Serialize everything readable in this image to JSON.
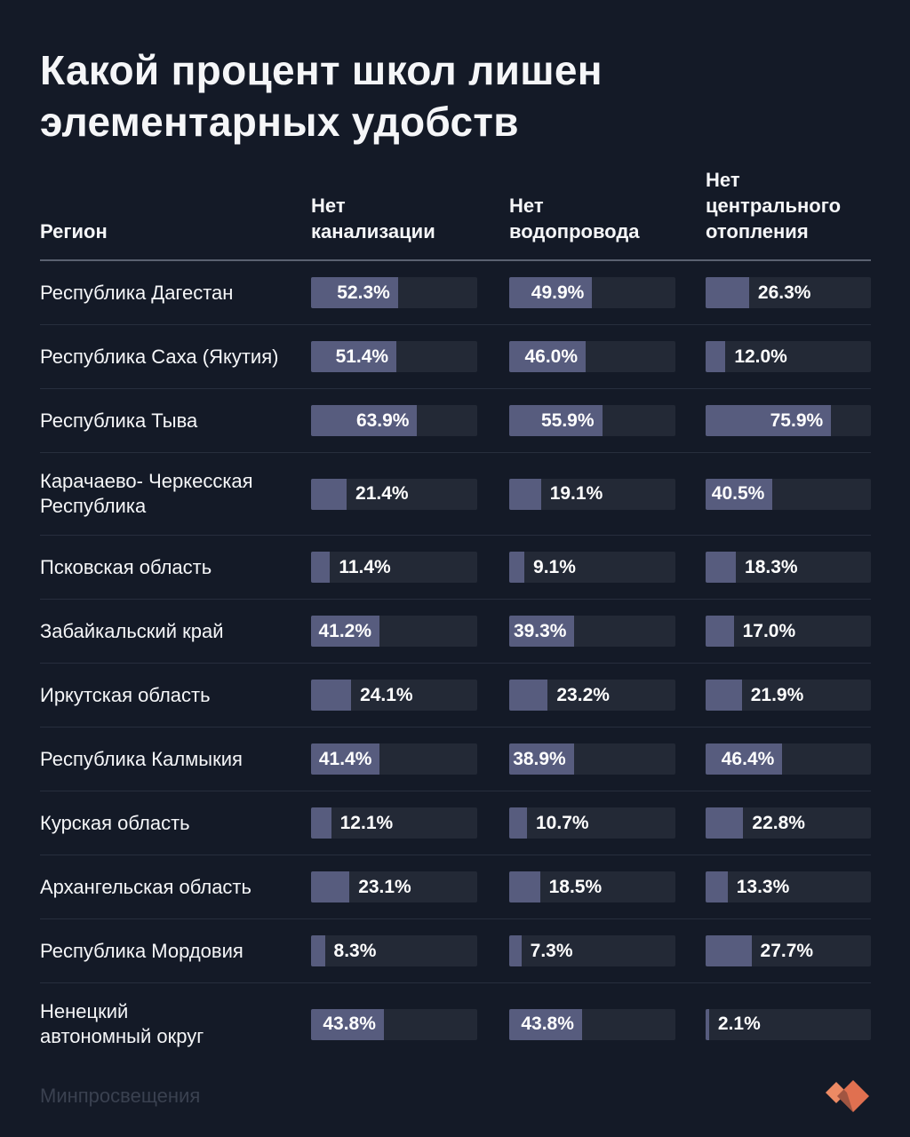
{
  "page": {
    "title": "Какой процент школ лишен элементарных удобств",
    "source": "Минпросвещения",
    "logo": "mel-heart-logo"
  },
  "table": {
    "region_header": "Регион",
    "column_headers": [
      "Нет\nканализации",
      "Нет\nводопровода",
      "Нет\nцентрального\nотопления"
    ]
  },
  "chart_data": {
    "type": "bar",
    "title": "Какой процент школ лишен элементарных удобств",
    "columns": [
      "Нет канализации",
      "Нет водопровода",
      "Нет центрального отопления"
    ],
    "unit": "%",
    "xlim": [
      0,
      100
    ],
    "value_label_format": "one_decimal_percent",
    "rows": [
      {
        "region": "Республика Дагестан",
        "values": [
          52.3,
          49.9,
          26.3
        ]
      },
      {
        "region": "Республика Саха (Якутия)",
        "values": [
          51.4,
          46.0,
          12.0
        ]
      },
      {
        "region": "Республика Тыва",
        "values": [
          63.9,
          55.9,
          75.9
        ]
      },
      {
        "region": "Карачаево- Черкесская\nРеспублика",
        "values": [
          21.4,
          19.1,
          40.5
        ]
      },
      {
        "region": "Псковская область",
        "values": [
          11.4,
          9.1,
          18.3
        ]
      },
      {
        "region": "Забайкальский край",
        "values": [
          41.2,
          39.3,
          17.0
        ]
      },
      {
        "region": "Иркутская область",
        "values": [
          24.1,
          23.2,
          21.9
        ]
      },
      {
        "region": "Республика Калмыкия",
        "values": [
          41.4,
          38.9,
          46.4
        ]
      },
      {
        "region": "Курская область",
        "values": [
          12.1,
          10.7,
          22.8
        ]
      },
      {
        "region": "Архангельская область",
        "values": [
          23.1,
          18.5,
          13.3
        ]
      },
      {
        "region": "Республика Мордовия",
        "values": [
          8.3,
          7.3,
          27.7
        ]
      },
      {
        "region": "Ненецкий\nавтономный округ",
        "values": [
          43.8,
          43.8,
          2.1
        ]
      }
    ]
  },
  "colors": {
    "background": "#141A27",
    "bar_track": "#232936",
    "bar_fill": "#575C7E",
    "text": "#F5F6F8",
    "header_rule": "#5A6170",
    "row_rule": "#272E3D",
    "source_text": "#3A4150",
    "logo_light": "#EC8A64",
    "logo_mid": "#E07050",
    "logo_dark": "#A05541"
  }
}
